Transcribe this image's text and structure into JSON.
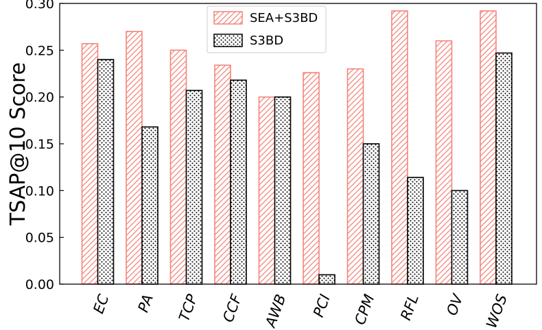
{
  "chart_data": {
    "type": "bar",
    "categories": [
      "EC",
      "PA",
      "TCP",
      "CCF",
      "AWB",
      "PCI",
      "CPM",
      "RFL",
      "OV",
      "WOS"
    ],
    "series": [
      {
        "name": "SEA+S3BD",
        "values": [
          0.257,
          0.27,
          0.25,
          0.234,
          0.2,
          0.226,
          0.23,
          0.292,
          0.26,
          0.292
        ],
        "color": "#f4837a",
        "pattern": "diagonal-hatch"
      },
      {
        "name": "S3BD",
        "values": [
          0.24,
          0.168,
          0.207,
          0.218,
          0.2,
          0.01,
          0.15,
          0.114,
          0.1,
          0.247
        ],
        "color": "#000000",
        "pattern": "dots"
      }
    ],
    "ylabel": "TSAP@10 Score",
    "xlabel": "",
    "ylim": [
      0,
      0.3
    ],
    "yticks": [
      0.0,
      0.05,
      0.1,
      0.15,
      0.2,
      0.25,
      0.3
    ],
    "ytick_labels": [
      "0.00",
      "0.05",
      "0.10",
      "0.15",
      "0.20",
      "0.25",
      "0.30"
    ],
    "grid": false,
    "legend_position": "top-center"
  }
}
